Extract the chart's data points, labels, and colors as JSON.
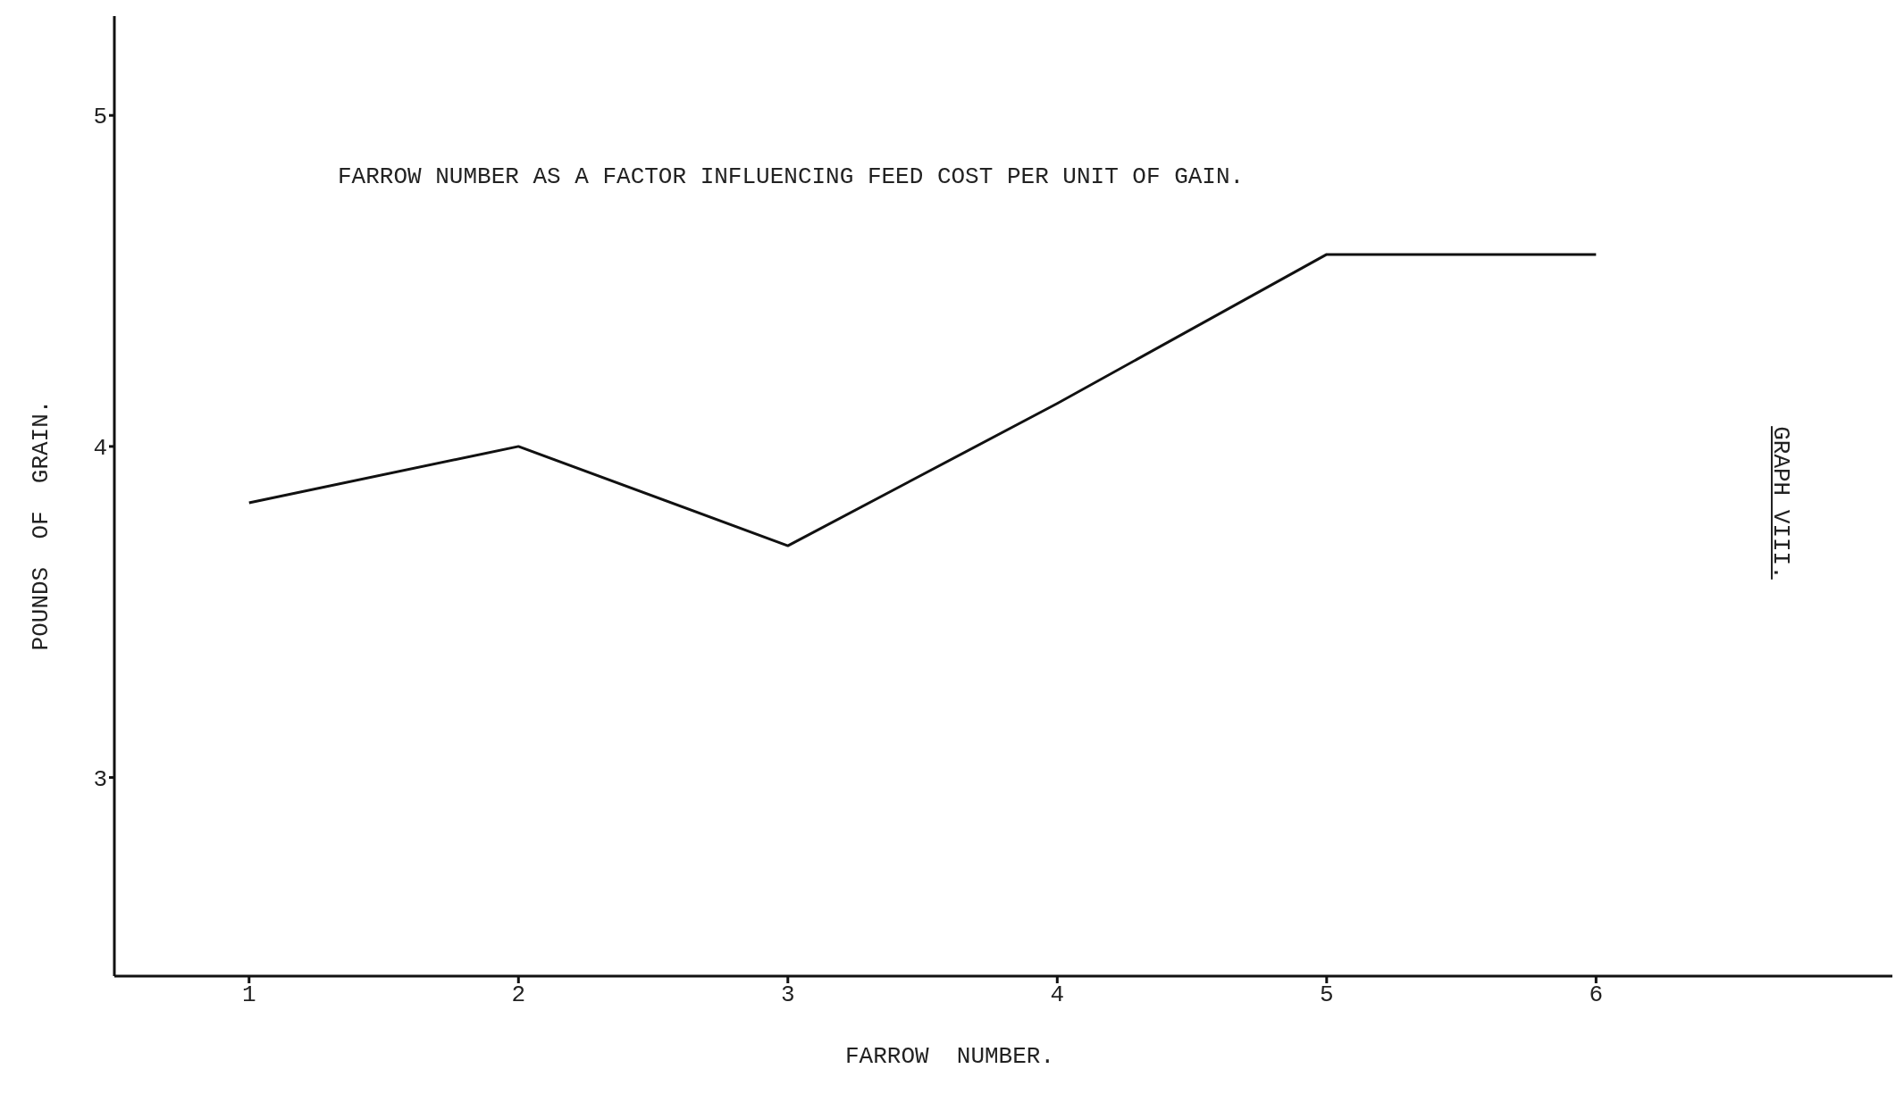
{
  "chart_data": {
    "type": "line",
    "title": "FARROW NUMBER AS A FACTOR INFLUENCING FEED COST PER UNIT OF GAIN.",
    "xlabel": "FARROW  NUMBER.",
    "ylabel": "POUNDS  OF  GRAIN.",
    "annotations": [
      "GRAPH VIII."
    ],
    "x": [
      1,
      2,
      3,
      4,
      5,
      6
    ],
    "series": [
      {
        "color": "#111111",
        "values": [
          3.83,
          4.0,
          3.7,
          4.13,
          4.58,
          4.58
        ]
      }
    ],
    "xlim": [
      0.5,
      7.1
    ],
    "xticks": [
      1,
      2,
      3,
      4,
      5,
      6
    ],
    "ylim": [
      2.4,
      5.3
    ],
    "yticks": [
      3,
      4,
      5
    ],
    "grid": false,
    "legend": false,
    "marker": "none",
    "line_style": "solid"
  }
}
